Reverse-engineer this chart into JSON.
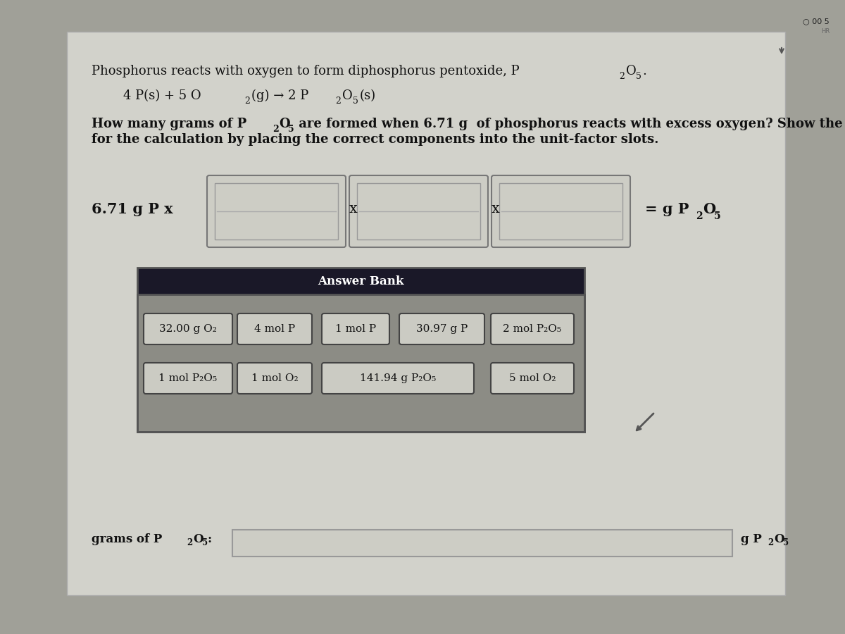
{
  "outer_bg": "#a0a098",
  "panel_facecolor": "#ccccc5",
  "title_text": "Phosphorus reacts with oxygen to form diphosphorus pentoxide, P",
  "title_sub1": "2",
  "title_mid": "O",
  "title_sub2": "5",
  "title_end": ".",
  "eq_part1": "4 P(s) + 5 O",
  "eq_sub1": "2",
  "eq_part2": "(g) → 2 P",
  "eq_sub2": "2",
  "eq_part3": "O",
  "eq_sub3": "5",
  "eq_part4": "(s)",
  "q_part1": "How many grams of P",
  "q_sub1": "2",
  "q_part2": "O",
  "q_sub2": "5",
  "q_part3": " are formed when 6.71 g  of phosphorus reacts with excess oxygen? Show the unit analysis used",
  "q_line2": "for the calculation by placing the correct components into the unit-factor slots.",
  "given_text": "6.71 g P x",
  "result_text": "= g P",
  "result_sub1": "2",
  "result_mid": "O",
  "result_sub2": "5",
  "answer_bank_header_color": "#1a1828",
  "answer_bank_body_color": "#8c8c85",
  "answer_bank_title": "Answer Bank",
  "answer_items_row1": [
    "32.00 g O₂",
    "4 mol P",
    "1 mol P",
    "30.97 g P",
    "2 mol P₂O₅"
  ],
  "answer_items_row2": [
    "1 mol P₂O₅",
    "1 mol O₂",
    "141.94 g P₂O₅",
    "5 mol O₂"
  ],
  "item_bg": "#cbcbc3",
  "item_border": "#444444",
  "slot_bg": "#cdcdc5",
  "slot_border": "#888888",
  "bottom_label": "grams of P",
  "bottom_sub1": "2",
  "bottom_mid": "O",
  "bottom_sub2": "5",
  "bottom_colon": ":",
  "bottom_result_label": "g P",
  "bottom_result_sub1": "2",
  "bottom_result_mid": "O",
  "bottom_result_sub2": "5",
  "input_box_bg": "#cdcdc5",
  "input_box_border": "#999999"
}
